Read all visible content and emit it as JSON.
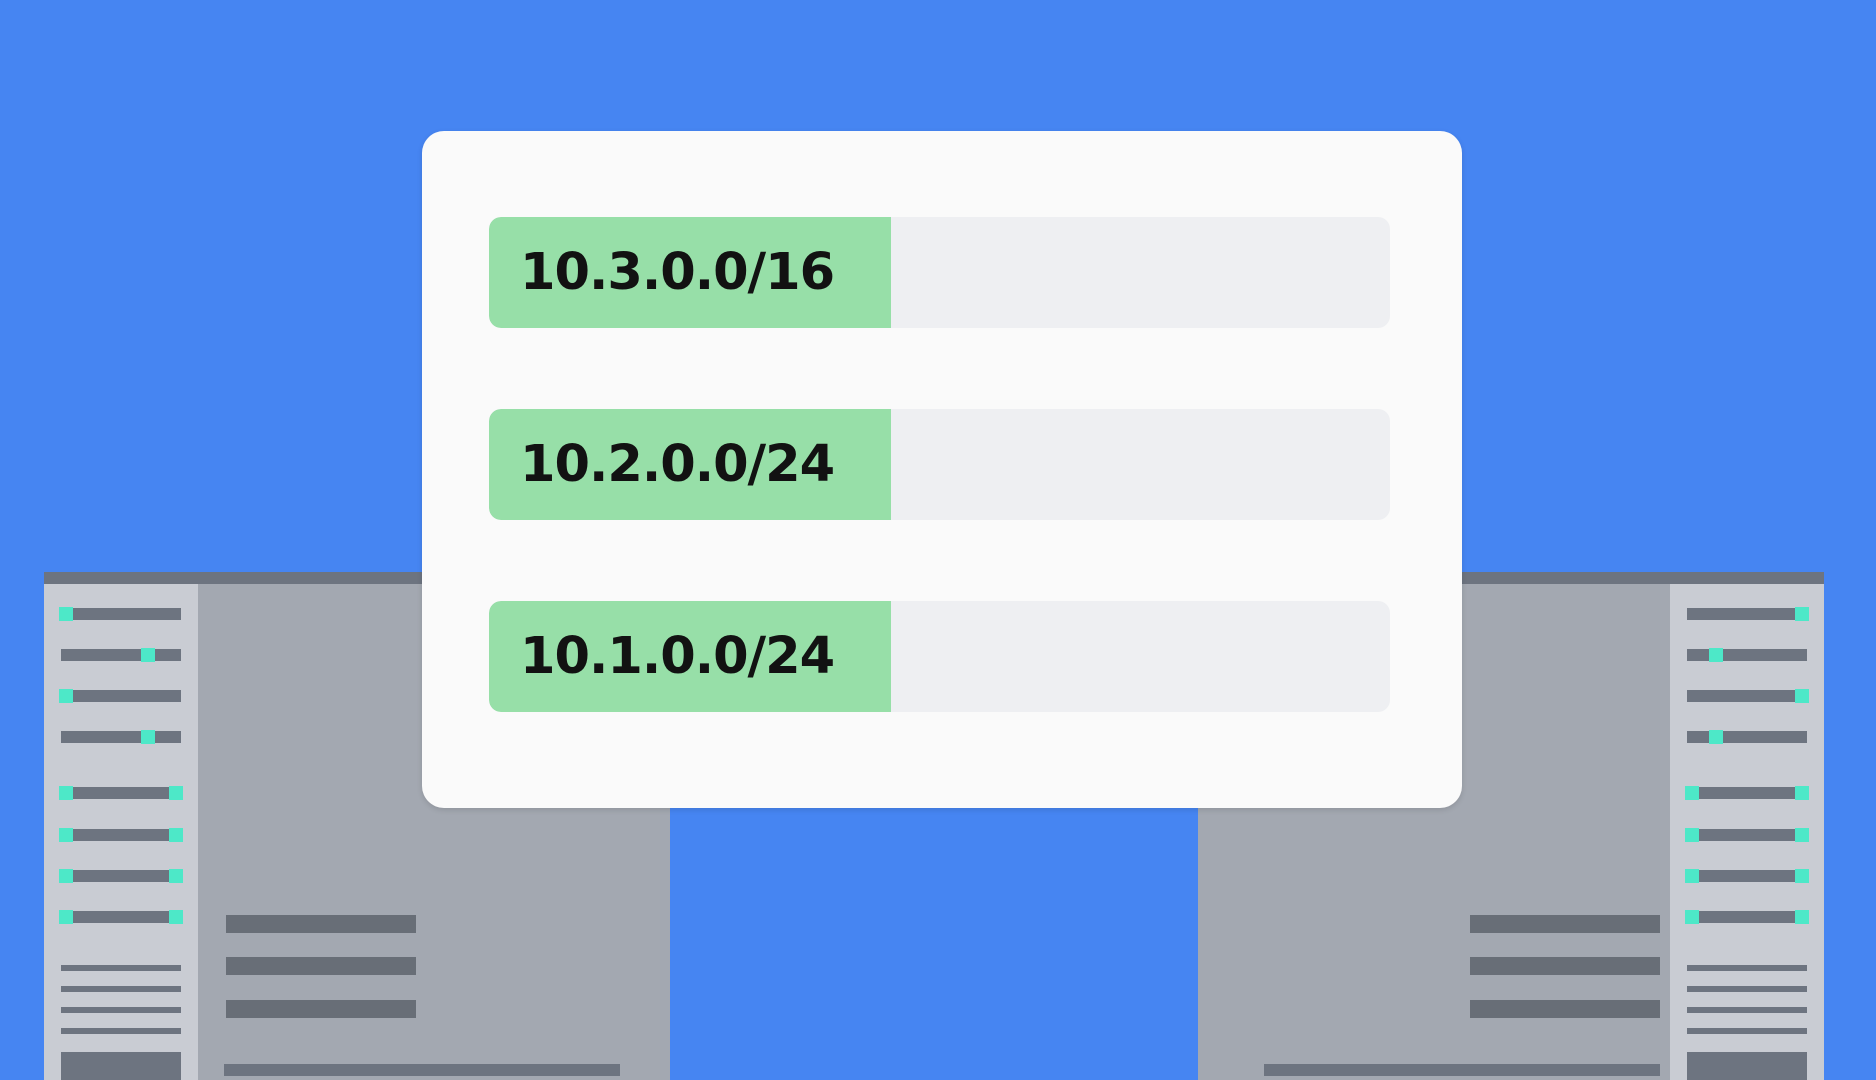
{
  "colors": {
    "background": "#4685f2",
    "panel": "#fafafa",
    "subnet_range_fill": "#97dfa8",
    "subnet_track": "#eeeff2",
    "server_body": "#a3a8b1",
    "server_panel": "#c9ccd3",
    "server_detail": "#6d7480",
    "led": "#4de8c8"
  },
  "subnets": [
    {
      "cidr": "10.3.0.0/16"
    },
    {
      "cidr": "10.2.0.0/24"
    },
    {
      "cidr": "10.1.0.0/24"
    }
  ],
  "servers": [
    {
      "id": "left",
      "icon": "server-rack-icon"
    },
    {
      "id": "right",
      "icon": "server-rack-icon"
    }
  ]
}
